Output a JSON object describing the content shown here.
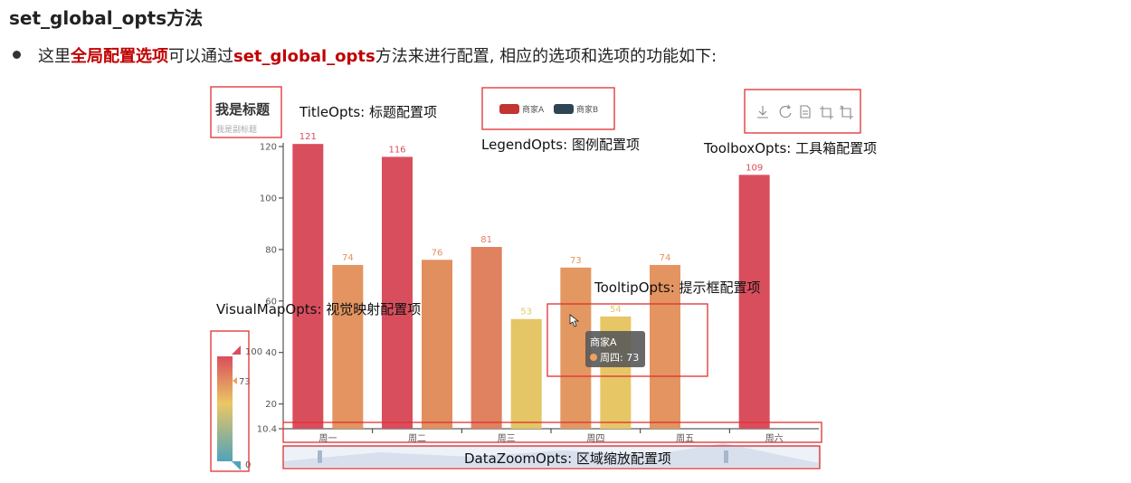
{
  "page": {
    "heading": "set_global_opts方法",
    "bullet": {
      "pre": "这里",
      "highlight1": "全局配置选项",
      "mid": "可以通过",
      "highlight2": "set_global_opts",
      "post": "方法来进行配置, 相应的选项和选项的功能如下:"
    }
  },
  "callouts": {
    "title_opts": "TitleOpts: 标题配置项",
    "legend_opts": "LegendOpts: 图例配置项",
    "toolbox_opts": "ToolboxOpts: 工具箱配置项",
    "tooltip_opts": "TooltipOpts: 提示框配置项",
    "visualmap_opts": "VisualMapOpts: 视觉映射配置项",
    "datazoom_opts": "DataZoomOpts: 区域缩放配置项"
  },
  "tooltip": {
    "series": "商家A",
    "item": "周四: 73"
  },
  "visualmap": {
    "max_label": "100",
    "min_label": "0",
    "current_label": "73"
  },
  "colors": {
    "callout_border": "#e03030",
    "highlight_text": "#c00000",
    "seriesA_legend": "#c23531",
    "seriesB_legend": "#2f4554"
  },
  "icons": [
    "download-icon",
    "refresh-icon",
    "data-view-icon",
    "zoom-icon",
    "zoom-reset-icon"
  ],
  "chart_data": {
    "type": "bar",
    "title": "我是标题",
    "subtitle": "我是副标题",
    "categories": [
      "周一",
      "周二",
      "周三",
      "周四",
      "周五",
      "周六"
    ],
    "series": [
      {
        "name": "商家A",
        "values": [
          121,
          116,
          81,
          73,
          74,
          109
        ]
      },
      {
        "name": "商家B",
        "values": [
          74,
          76,
          53,
          54,
          null,
          null
        ]
      }
    ],
    "y_ticks": [
      120,
      100,
      80,
      60,
      40,
      20,
      10.4
    ],
    "ylim": [
      10.4,
      125
    ],
    "xlabel": "",
    "ylabel": "",
    "legend_position": "top",
    "grid": false
  }
}
